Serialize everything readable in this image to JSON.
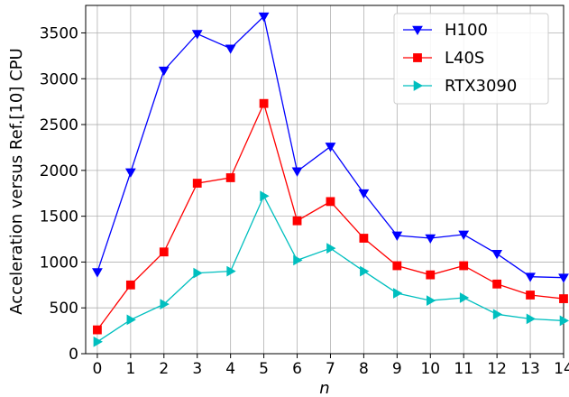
{
  "chart_data": {
    "type": "line",
    "xlabel": "n",
    "ylabel": "Acceleration versus Ref.[10] CPU",
    "x": [
      0,
      1,
      2,
      3,
      4,
      5,
      6,
      7,
      8,
      9,
      10,
      11,
      12,
      13,
      14
    ],
    "xlim": [
      -0.35,
      14
    ],
    "ylim": [
      0,
      3800
    ],
    "yticks": [
      0,
      500,
      1000,
      1500,
      2000,
      2500,
      3000,
      3500
    ],
    "grid": true,
    "legend_position": "top-right",
    "series": [
      {
        "name": "H100",
        "color": "#0000ff",
        "marker": "triangle-down",
        "values": [
          890,
          1980,
          3090,
          3490,
          3330,
          3680,
          1990,
          2260,
          1750,
          1290,
          1260,
          1300,
          1090,
          840,
          830
        ]
      },
      {
        "name": "L40S",
        "color": "#ff0000",
        "marker": "square",
        "values": [
          260,
          750,
          1110,
          1860,
          1920,
          2730,
          1450,
          1660,
          1260,
          960,
          860,
          960,
          760,
          640,
          600
        ]
      },
      {
        "name": "RTX3090",
        "color": "#00bfbf",
        "marker": "triangle-right",
        "values": [
          130,
          370,
          540,
          880,
          900,
          1720,
          1020,
          1150,
          900,
          660,
          580,
          610,
          430,
          380,
          360
        ]
      }
    ]
  }
}
